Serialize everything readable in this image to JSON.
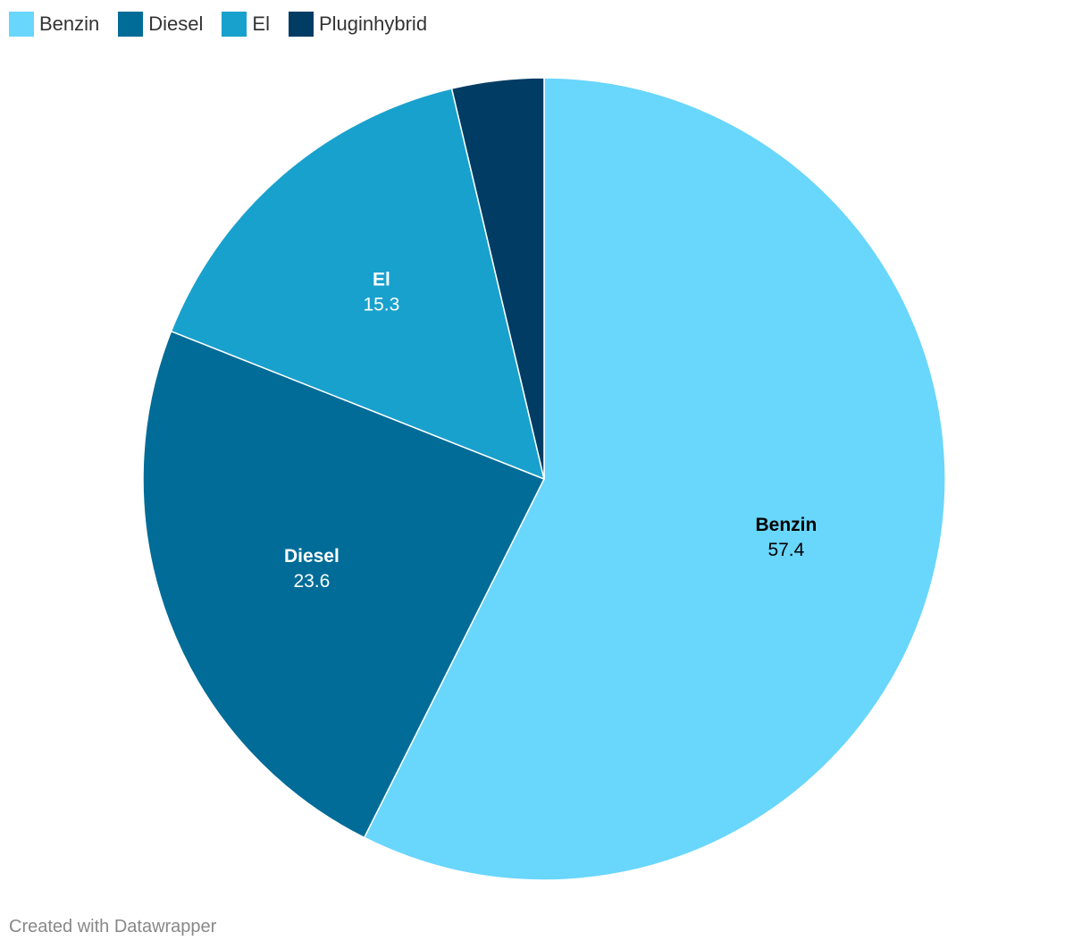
{
  "chart_data": {
    "type": "pie",
    "categories": [
      "Benzin",
      "Diesel",
      "El",
      "Pluginhybrid"
    ],
    "values": [
      57.4,
      23.6,
      15.3,
      3.7
    ],
    "colors": [
      "#69d6fc",
      "#006c97",
      "#18a1cd",
      "#003c64"
    ],
    "label_colors": [
      "#000000",
      "#ffffff",
      "#ffffff",
      "#ffffff"
    ],
    "value_labels": [
      "57.4",
      "23.6",
      "15.3",
      ""
    ],
    "direction": "clockwise",
    "start": "top",
    "legend_position": "top-left"
  },
  "legend": {
    "items": [
      {
        "label": "Benzin",
        "color": "#69d6fc"
      },
      {
        "label": "Diesel",
        "color": "#006c97"
      },
      {
        "label": "El",
        "color": "#18a1cd"
      },
      {
        "label": "Pluginhybrid",
        "color": "#003c64"
      }
    ]
  },
  "footer": {
    "credit": "Created with Datawrapper"
  }
}
